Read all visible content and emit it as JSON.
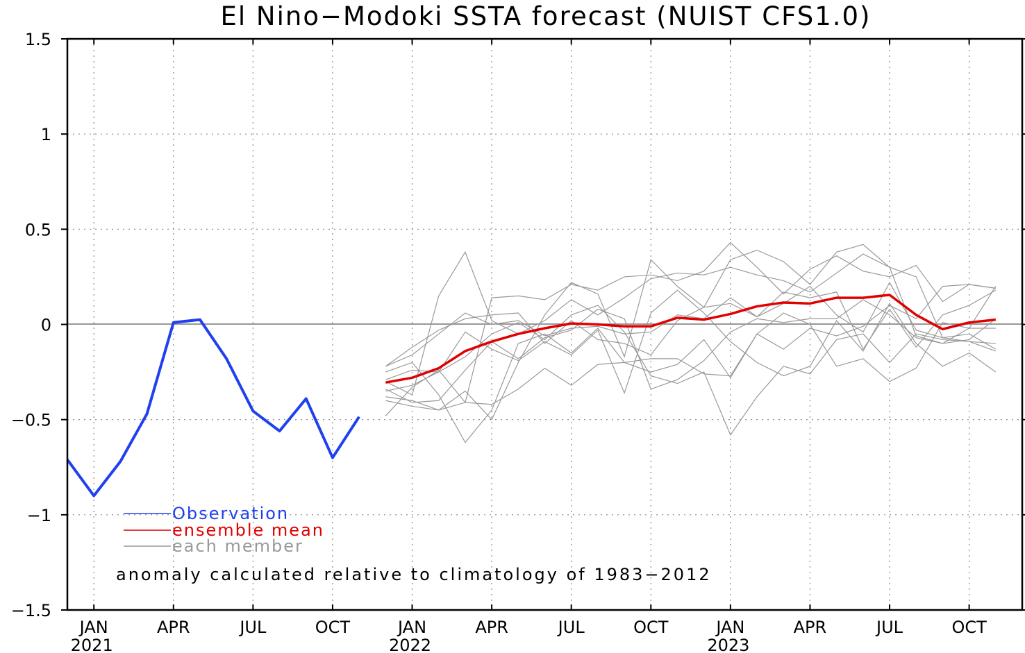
{
  "chart_data": {
    "type": "line",
    "title": "El Nino−Modoki SSTA forecast (NUIST CFS1.0)",
    "ylim": [
      -1.5,
      1.5
    ],
    "yticks": [
      {
        "value": 1.5,
        "label": "1.5"
      },
      {
        "value": 1,
        "label": "1"
      },
      {
        "value": 0.5,
        "label": "0.5"
      },
      {
        "value": 0,
        "label": "0"
      },
      {
        "value": -0.5,
        "label": "−0.5"
      },
      {
        "value": -1,
        "label": "−1"
      },
      {
        "value": -1.5,
        "label": "−1.5"
      }
    ],
    "xlim": [
      "2020-12",
      "2023-12"
    ],
    "xticks": [
      {
        "x": "2021-01",
        "label": "JAN",
        "year": "2021"
      },
      {
        "x": "2021-04",
        "label": "APR"
      },
      {
        "x": "2021-07",
        "label": "JUL"
      },
      {
        "x": "2021-10",
        "label": "OCT"
      },
      {
        "x": "2022-01",
        "label": "JAN",
        "year": "2022"
      },
      {
        "x": "2022-04",
        "label": "APR"
      },
      {
        "x": "2022-07",
        "label": "JUL"
      },
      {
        "x": "2022-10",
        "label": "OCT"
      },
      {
        "x": "2023-01",
        "label": "JAN",
        "year": "2023"
      },
      {
        "x": "2023-04",
        "label": "APR"
      },
      {
        "x": "2023-07",
        "label": "JUL"
      },
      {
        "x": "2023-10",
        "label": "OCT"
      }
    ],
    "grid": true,
    "legend_position": "bottom-left",
    "annotation": "anomaly calculated relative to climatology of 1983−2012",
    "series": [
      {
        "name": "Observation",
        "color": "#2040f0",
        "x": [
          "2020-12",
          "2021-01",
          "2021-02",
          "2021-03",
          "2021-04",
          "2021-05",
          "2021-06",
          "2021-07",
          "2021-08",
          "2021-09",
          "2021-10",
          "2021-11"
        ],
        "values": [
          -0.71,
          -0.9,
          -0.72,
          -0.47,
          0.01,
          0.025,
          -0.18,
          -0.455,
          -0.56,
          -0.39,
          -0.7,
          -0.485
        ]
      },
      {
        "name": "ensemble mean",
        "color": "#e00000",
        "x": [
          "2021-12",
          "2022-01",
          "2022-02",
          "2022-03",
          "2022-04",
          "2022-05",
          "2022-06",
          "2022-07",
          "2022-08",
          "2022-09",
          "2022-10",
          "2022-11",
          "2022-12",
          "2023-01",
          "2023-02",
          "2023-03",
          "2023-04",
          "2023-05",
          "2023-06",
          "2023-07",
          "2023-08",
          "2023-09",
          "2023-10",
          "2023-11"
        ],
        "values": [
          -0.305,
          -0.28,
          -0.23,
          -0.14,
          -0.09,
          -0.05,
          -0.02,
          0.005,
          0.0,
          -0.01,
          -0.01,
          0.035,
          0.025,
          0.055,
          0.095,
          0.115,
          0.11,
          0.14,
          0.14,
          0.155,
          0.05,
          -0.025,
          0.01,
          0.025
        ]
      },
      {
        "name": "each member",
        "color": "#999999",
        "x_start": "2021-12",
        "members": [
          [
            -0.22,
            -0.16,
            -0.05,
            0.06,
            0.0,
            0.02,
            -0.06,
            -0.02,
            -0.01,
            -0.05,
            -0.04,
            0.05,
            0.03,
            0.14,
            0.04,
            0.11,
            0.2,
            0.05,
            -0.04,
            0.22,
            -0.03,
            -0.07,
            -0.05,
            -0.13
          ],
          [
            -0.22,
            -0.12,
            -0.03,
            0.03,
            0.05,
            0.06,
            -0.1,
            0.02,
            -0.08,
            -0.1,
            -0.16,
            0.02,
            0.09,
            0.11,
            0.04,
            0.17,
            0.14,
            0.17,
            -0.13,
            0.08,
            -0.12,
            0.05,
            0.1,
            0.18
          ],
          [
            -0.3,
            -0.37,
            0.15,
            0.38,
            0.02,
            -0.05,
            0.02,
            0.13,
            0.05,
            0.14,
            0.24,
            0.27,
            0.26,
            0.3,
            0.26,
            0.23,
            0.17,
            0.27,
            0.37,
            0.3,
            0.25,
            -0.07,
            -0.09,
            -0.14
          ],
          [
            -0.48,
            -0.33,
            -0.24,
            -0.41,
            0.14,
            0.15,
            0.13,
            0.21,
            0.18,
            0.25,
            0.26,
            0.23,
            0.28,
            0.43,
            0.3,
            0.16,
            0.29,
            0.36,
            0.28,
            0.25,
            0.31,
            0.12,
            0.21,
            0.19
          ],
          [
            -0.38,
            -0.4,
            -0.45,
            -0.35,
            -0.5,
            -0.2,
            0.05,
            0.22,
            0.16,
            -0.17,
            0.34,
            0.2,
            0.09,
            0.34,
            0.39,
            0.33,
            0.21,
            0.38,
            0.42,
            0.3,
            -0.06,
            -0.1,
            -0.02,
            0.2
          ],
          [
            -0.25,
            -0.2,
            -0.37,
            -0.62,
            -0.45,
            -0.1,
            -0.05,
            -0.15,
            -0.02,
            -0.2,
            -0.25,
            -0.21,
            -0.08,
            -0.28,
            -0.05,
            0.06,
            0.0,
            -0.22,
            -0.18,
            -0.3,
            -0.23,
            0.01,
            -0.02,
            -0.02
          ],
          [
            -0.34,
            -0.41,
            -0.4,
            -0.24,
            -0.09,
            -0.18,
            -0.07,
            -0.03,
            0.08,
            0.03,
            -0.34,
            -0.29,
            -0.19,
            -0.04,
            0.03,
            0.01,
            0.03,
            0.03,
            0.13,
            0.05,
            -0.07,
            -0.1,
            -0.08,
            0.03
          ],
          [
            -0.4,
            -0.43,
            -0.45,
            -0.41,
            -0.42,
            -0.34,
            -0.23,
            -0.32,
            -0.21,
            -0.2,
            -0.18,
            -0.18,
            -0.26,
            -0.27,
            -0.05,
            -0.13,
            -0.02,
            -0.06,
            -0.01,
            0.1,
            0.03,
            0.2,
            0.21,
            0.19
          ],
          [
            -0.29,
            -0.24,
            -0.25,
            -0.04,
            -0.13,
            -0.19,
            -0.09,
            -0.16,
            -0.03,
            -0.36,
            0.06,
            0.18,
            0.06,
            -0.09,
            -0.2,
            -0.27,
            -0.22,
            0.02,
            -0.14,
            0.11,
            -0.1,
            -0.22,
            -0.15,
            -0.25
          ],
          [
            -0.35,
            -0.32,
            -0.25,
            -0.17,
            -0.05,
            0.01,
            -0.08,
            0.05,
            0.1,
            -0.04,
            -0.27,
            -0.31,
            -0.25,
            -0.58,
            -0.38,
            -0.22,
            -0.26,
            -0.08,
            -0.05,
            -0.2,
            -0.05,
            -0.08,
            -0.09,
            -0.1
          ]
        ]
      }
    ]
  }
}
